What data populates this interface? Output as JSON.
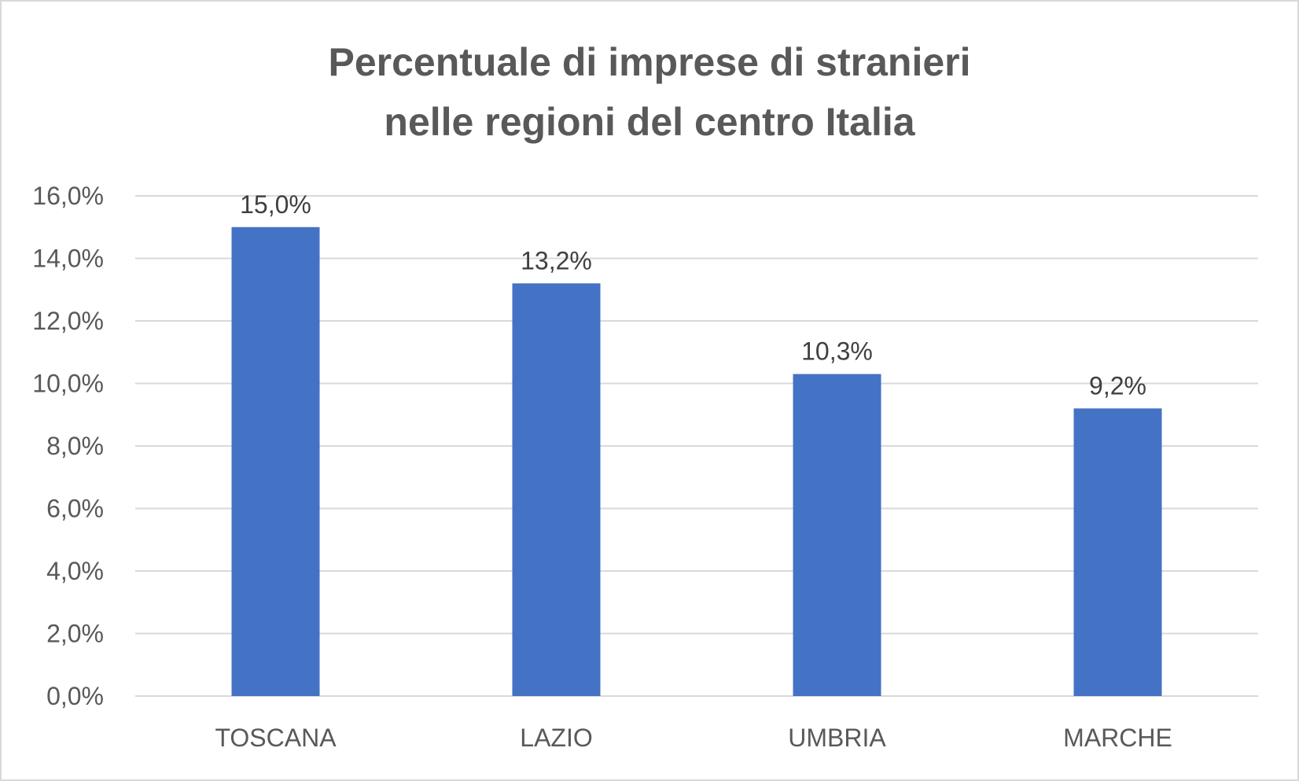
{
  "chart_data": {
    "type": "bar",
    "title": [
      "Percentuale di imprese di stranieri",
      "nelle regioni del centro Italia"
    ],
    "categories": [
      "TOSCANA",
      "LAZIO",
      "UMBRIA",
      "MARCHE"
    ],
    "values": [
      15.0,
      13.2,
      10.3,
      9.2
    ],
    "data_labels": [
      "15,0%",
      "13,2%",
      "10,3%",
      "9,2%"
    ],
    "xlabel": "",
    "ylabel": "",
    "ylim": [
      0,
      16
    ],
    "yticks": [
      0,
      2,
      4,
      6,
      8,
      10,
      12,
      14,
      16
    ],
    "ytick_labels": [
      "0,0%",
      "2,0%",
      "4,0%",
      "6,0%",
      "8,0%",
      "10,0%",
      "12,0%",
      "14,0%",
      "16,0%"
    ],
    "grid": true,
    "legend": "none",
    "bar_color": "#4472c4",
    "grid_color": "#d9d9d9"
  }
}
